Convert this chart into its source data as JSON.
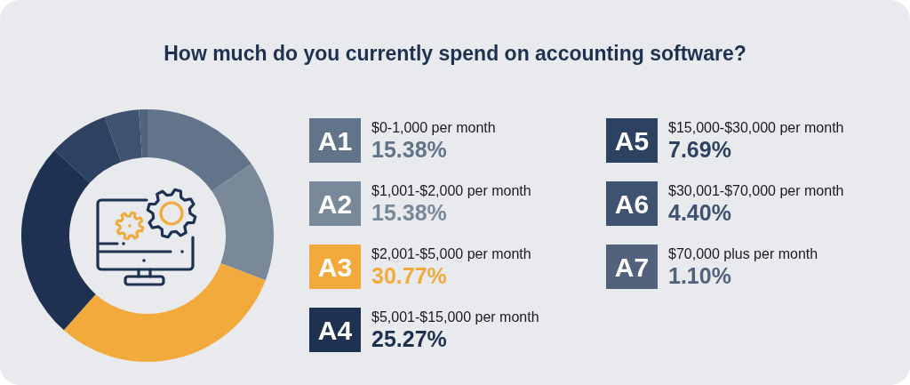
{
  "chart_data": {
    "type": "donut",
    "title": "How much do you currently spend on accounting software?",
    "categories": [
      "$0-1,000 per month",
      "$1,001-$2,000 per month",
      "$2,001-$5,000 per month",
      "$5,001-$15,000 per month",
      "$15,000-$30,000 per month",
      "$30,001-$70,000 per month",
      "$70,000 plus per month"
    ],
    "values": [
      15.38,
      15.38,
      30.77,
      25.27,
      7.69,
      4.4,
      1.1
    ],
    "value_labels": [
      "15.38%",
      "15.38%",
      "30.77%",
      "25.27%",
      "7.69%",
      "4.40%",
      "1.10%"
    ],
    "colors": [
      "#627489",
      "#7a899a",
      "#f2aa3c",
      "#1e3150",
      "#2d4161",
      "#3f5270",
      "#52627c"
    ],
    "annotations": [
      "A1",
      "A2",
      "A3",
      "A4",
      "A5",
      "A6",
      "A7"
    ],
    "legend": "right"
  }
}
